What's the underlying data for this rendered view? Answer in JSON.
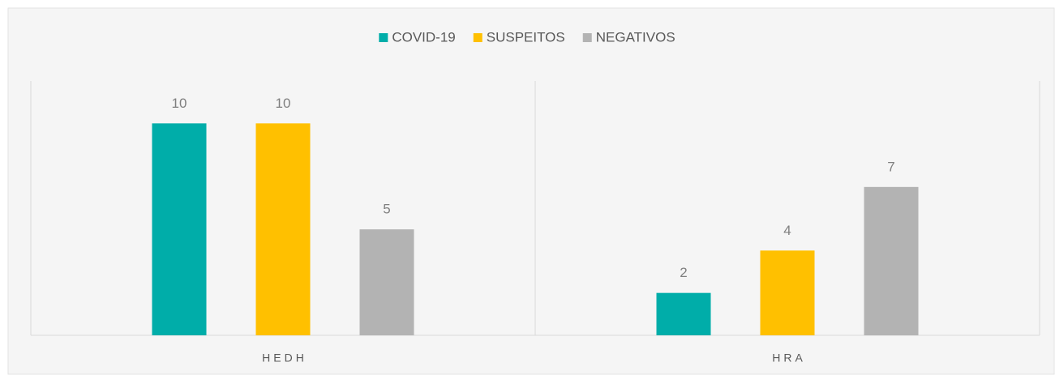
{
  "chart_data": {
    "type": "bar",
    "categories": [
      "HEDH",
      "HRA"
    ],
    "series": [
      {
        "name": "COVID-19",
        "color": "#00ada9",
        "values": [
          10,
          2
        ]
      },
      {
        "name": "SUSPEITOS",
        "color": "#ffc000",
        "values": [
          10,
          4
        ]
      },
      {
        "name": "NEGATIVOS",
        "color": "#b3b3b3",
        "values": [
          5,
          7
        ]
      }
    ],
    "ylim": [
      0,
      12
    ],
    "legend": "top"
  }
}
